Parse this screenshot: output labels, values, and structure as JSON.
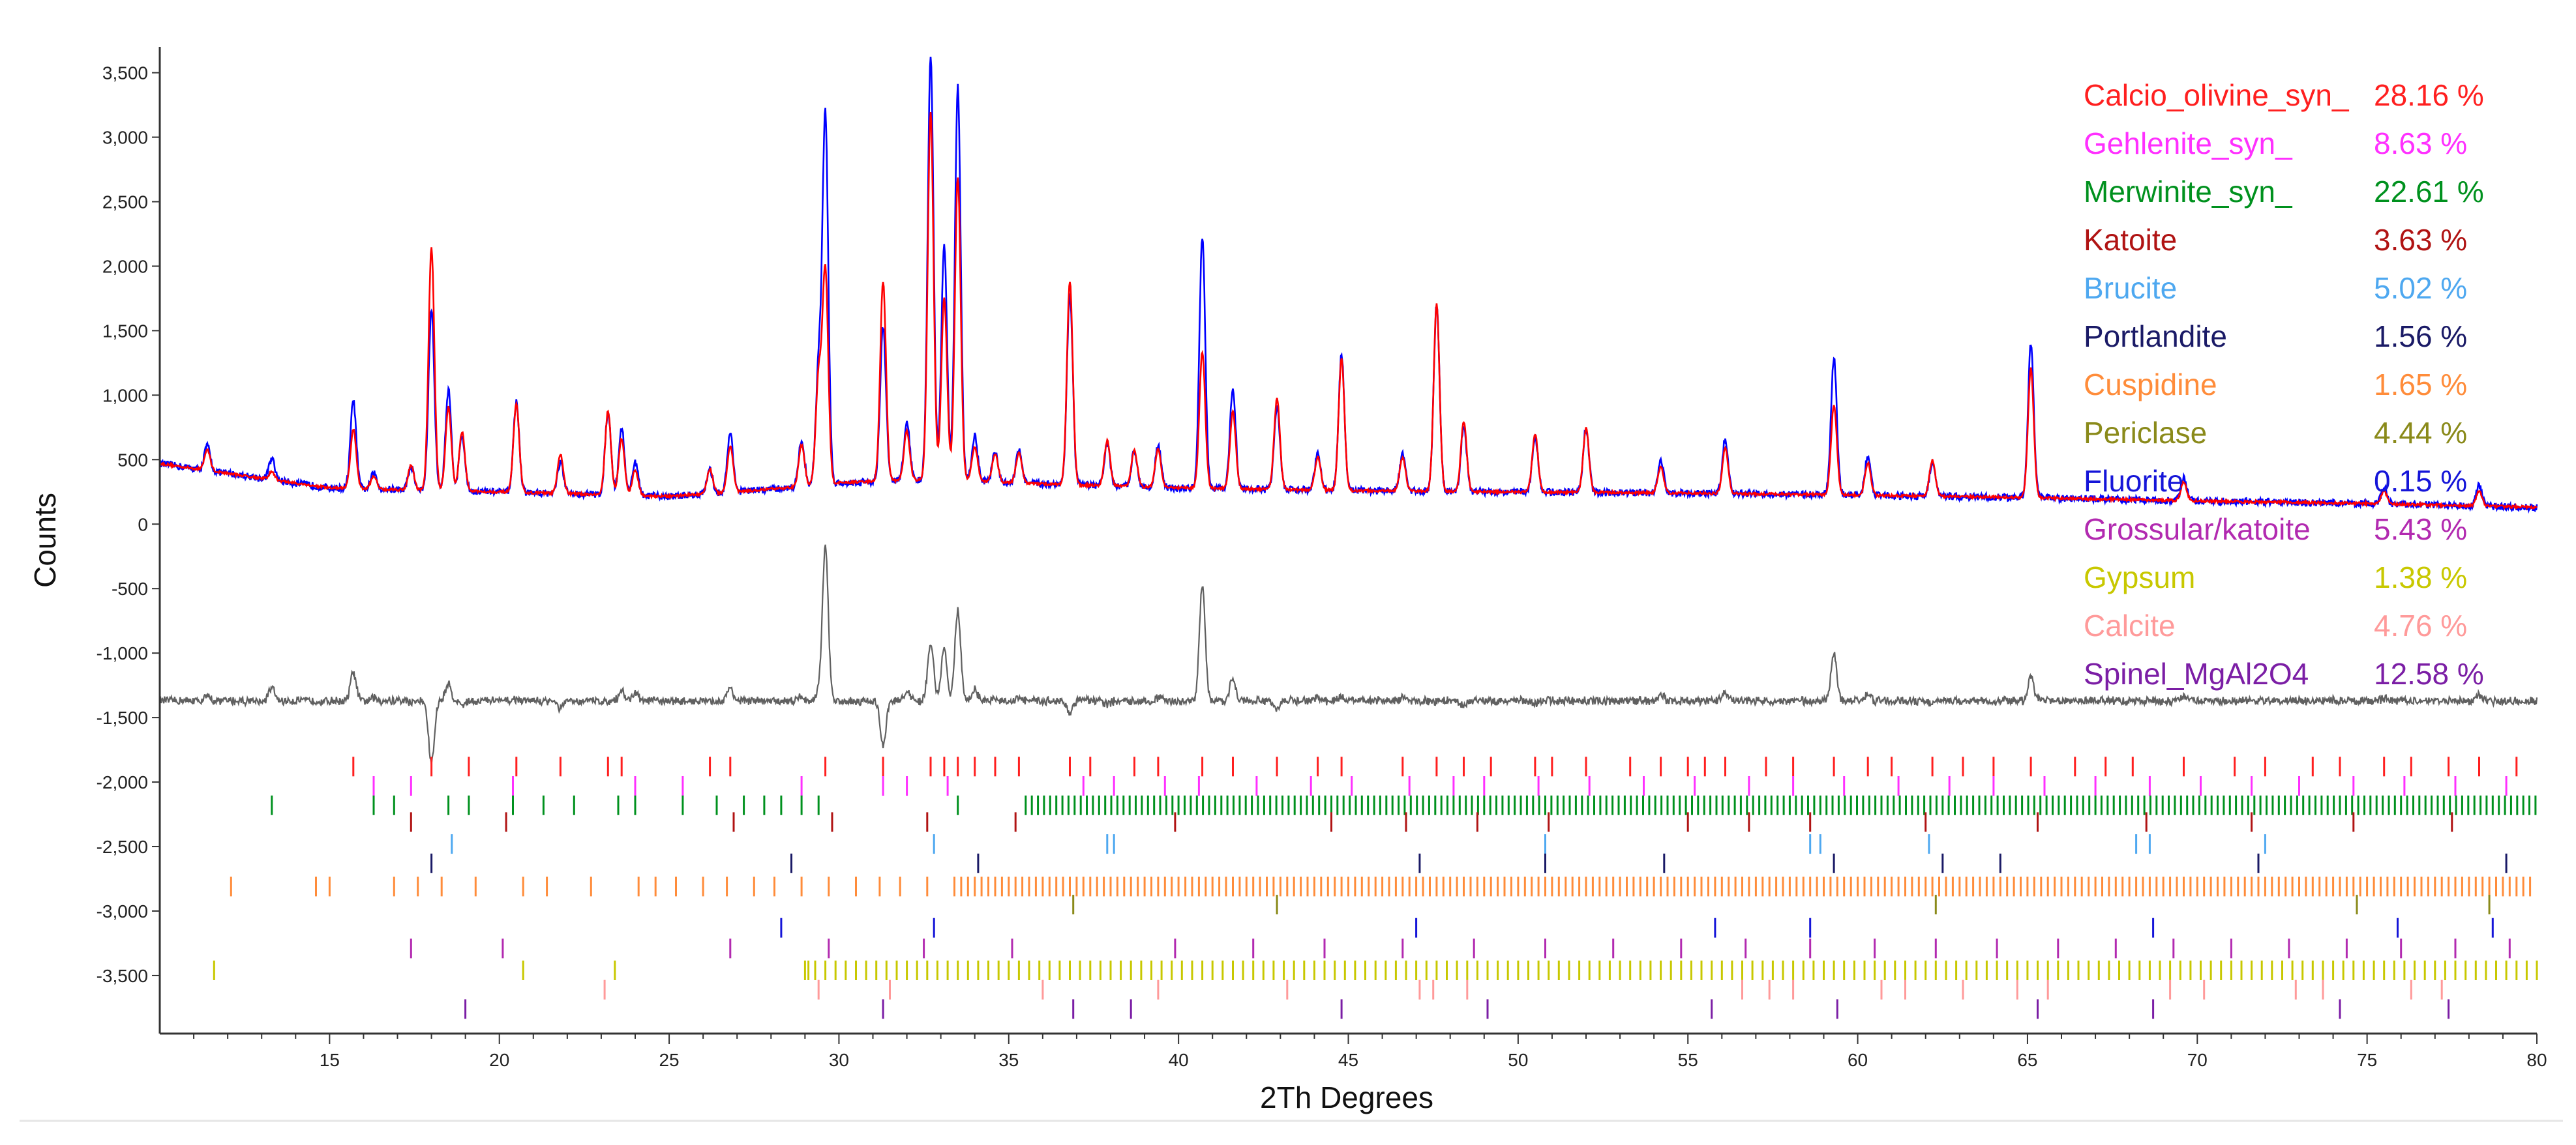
{
  "chart_data": {
    "type": "line",
    "title": "",
    "xlabel": "2Th Degrees",
    "ylabel": "Counts",
    "xlim": [
      10,
      80
    ],
    "ylim": [
      -3950,
      3700
    ],
    "grid": false,
    "legend_position": "top-right",
    "x_ticks": [
      15,
      20,
      25,
      30,
      35,
      40,
      45,
      50,
      55,
      60,
      65,
      70,
      75,
      80
    ],
    "x_tick_labels": [
      "15",
      "20",
      "25",
      "30",
      "35",
      "40",
      "45",
      "50",
      "55",
      "60",
      "65",
      "70",
      "75",
      "80"
    ],
    "y_ticks": [
      3500,
      3000,
      2500,
      2000,
      1500,
      1000,
      500,
      0,
      -500,
      -1000,
      -1500,
      -2000,
      -2500,
      -3000,
      -3500
    ],
    "y_tick_labels": [
      "3,500",
      "3,000",
      "2,500",
      "2,000",
      "1,500",
      "1,000",
      "500",
      "0",
      "-500",
      "-1,000",
      "-1,500",
      "-2,000",
      "-2,500",
      "-3,000",
      "-3,500"
    ],
    "background_curve": [
      [
        10,
        470
      ],
      [
        15,
        280
      ],
      [
        20,
        250
      ],
      [
        25,
        215
      ],
      [
        28,
        270
      ],
      [
        30,
        320
      ],
      [
        33,
        350
      ],
      [
        35,
        320
      ],
      [
        40,
        280
      ],
      [
        45,
        260
      ],
      [
        50,
        250
      ],
      [
        55,
        240
      ],
      [
        60,
        225
      ],
      [
        65,
        205
      ],
      [
        70,
        180
      ],
      [
        75,
        160
      ],
      [
        80,
        130
      ]
    ],
    "peaks": [
      {
        "x": 11.4,
        "obs": 190,
        "calc": 160
      },
      {
        "x": 13.3,
        "obs": 160,
        "calc": 60
      },
      {
        "x": 15.7,
        "obs": 680,
        "calc": 460
      },
      {
        "x": 16.3,
        "obs": 120,
        "calc": 100
      },
      {
        "x": 17.4,
        "obs": 180,
        "calc": 190
      },
      {
        "x": 18.0,
        "obs": 1400,
        "calc": 1880
      },
      {
        "x": 18.5,
        "obs": 780,
        "calc": 650
      },
      {
        "x": 18.9,
        "obs": 430,
        "calc": 460
      },
      {
        "x": 20.5,
        "obs": 700,
        "calc": 680
      },
      {
        "x": 21.8,
        "obs": 240,
        "calc": 300
      },
      {
        "x": 23.2,
        "obs": 650,
        "calc": 650
      },
      {
        "x": 23.6,
        "obs": 520,
        "calc": 440
      },
      {
        "x": 24.0,
        "obs": 260,
        "calc": 200
      },
      {
        "x": 26.2,
        "obs": 180,
        "calc": 190
      },
      {
        "x": 26.8,
        "obs": 460,
        "calc": 360
      },
      {
        "x": 28.9,
        "obs": 360,
        "calc": 320
      },
      {
        "x": 29.4,
        "obs": 880,
        "calc": 820
      },
      {
        "x": 29.6,
        "obs": 2850,
        "calc": 1650
      },
      {
        "x": 31.3,
        "obs": 1200,
        "calc": 1550
      },
      {
        "x": 32.0,
        "obs": 450,
        "calc": 380
      },
      {
        "x": 32.7,
        "obs": 3300,
        "calc": 2850
      },
      {
        "x": 33.1,
        "obs": 1800,
        "calc": 1400
      },
      {
        "x": 33.5,
        "obs": 3050,
        "calc": 2350
      },
      {
        "x": 34.0,
        "obs": 350,
        "calc": 260
      },
      {
        "x": 34.6,
        "obs": 230,
        "calc": 220
      },
      {
        "x": 35.3,
        "obs": 260,
        "calc": 240
      },
      {
        "x": 36.8,
        "obs": 1480,
        "calc": 1580
      },
      {
        "x": 37.9,
        "obs": 320,
        "calc": 350
      },
      {
        "x": 38.7,
        "obs": 280,
        "calc": 280
      },
      {
        "x": 39.4,
        "obs": 320,
        "calc": 300
      },
      {
        "x": 40.7,
        "obs": 1950,
        "calc": 1060
      },
      {
        "x": 41.6,
        "obs": 780,
        "calc": 600
      },
      {
        "x": 42.9,
        "obs": 650,
        "calc": 710
      },
      {
        "x": 44.1,
        "obs": 280,
        "calc": 260
      },
      {
        "x": 44.8,
        "obs": 1050,
        "calc": 1020
      },
      {
        "x": 46.6,
        "obs": 280,
        "calc": 260
      },
      {
        "x": 47.6,
        "obs": 1440,
        "calc": 1450
      },
      {
        "x": 48.4,
        "obs": 500,
        "calc": 540
      },
      {
        "x": 50.5,
        "obs": 430,
        "calc": 450
      },
      {
        "x": 52.0,
        "obs": 500,
        "calc": 500
      },
      {
        "x": 54.2,
        "obs": 250,
        "calc": 200
      },
      {
        "x": 56.1,
        "obs": 420,
        "calc": 350
      },
      {
        "x": 59.3,
        "obs": 1060,
        "calc": 700
      },
      {
        "x": 60.3,
        "obs": 300,
        "calc": 250
      },
      {
        "x": 62.2,
        "obs": 260,
        "calc": 280
      },
      {
        "x": 65.1,
        "obs": 1200,
        "calc": 1000
      },
      {
        "x": 69.6,
        "obs": 170,
        "calc": 140
      },
      {
        "x": 75.5,
        "obs": 120,
        "calc": 100
      },
      {
        "x": 78.3,
        "obs": 160,
        "calc": 120
      }
    ],
    "difference_offset": -1370,
    "series": [
      {
        "name": "",
        "role": "observed",
        "color": "#0000ff"
      },
      {
        "name": "",
        "role": "calculated",
        "color": "#ff0000"
      },
      {
        "name": "",
        "role": "difference",
        "color": "#606060"
      }
    ],
    "phases": [
      {
        "name": "Calcio_olivine_syn_",
        "percent": "28.16 %",
        "color": "#ff1f1f",
        "tick_y": -1880,
        "reflections": [
          15.7,
          18.0,
          19.1,
          20.5,
          21.8,
          23.2,
          23.6,
          26.2,
          26.8,
          29.6,
          31.3,
          32.7,
          33.1,
          33.5,
          34.0,
          34.6,
          35.3,
          36.8,
          37.4,
          38.7,
          39.4,
          40.7,
          41.6,
          42.9,
          44.1,
          44.8,
          46.6,
          47.6,
          48.4,
          49.2,
          50.5,
          51.0,
          52.0,
          53.3,
          54.2,
          55.0,
          55.5,
          56.1,
          57.3,
          58.1,
          59.3,
          60.3,
          61.0,
          62.2,
          63.1,
          64.0,
          65.1,
          66.4,
          67.3,
          68.1,
          69.6,
          71.1,
          72.0,
          73.4,
          74.2,
          75.5,
          76.3,
          77.4,
          78.3,
          79.4
        ]
      },
      {
        "name": "Gehlenite_syn_",
        "percent": "8.63 %",
        "color": "#ff30ff",
        "tick_y": -2030,
        "reflections": [
          16.3,
          17.4,
          20.4,
          24.0,
          25.4,
          28.9,
          31.3,
          32.0,
          33.2,
          37.2,
          38.1,
          39.6,
          40.6,
          42.3,
          43.9,
          45.1,
          46.8,
          48.1,
          49.0,
          50.6,
          52.1,
          53.7,
          55.2,
          56.8,
          58.1,
          59.6,
          61.2,
          62.7,
          64.0,
          65.5,
          67.0,
          68.6,
          70.1,
          71.6,
          73.0,
          74.6,
          76.1,
          77.6,
          79.1
        ]
      },
      {
        "name": "Merwinite_syn_",
        "percent": "22.61 %",
        "color": "#00911e",
        "tick_y": -2180,
        "dense_from": 35.5,
        "dense_to": 80,
        "dense_step": 0.18,
        "reflections": [
          13.3,
          16.3,
          16.9,
          18.5,
          19.1,
          20.4,
          21.3,
          22.2,
          23.5,
          24.0,
          25.4,
          26.4,
          27.2,
          27.8,
          28.3,
          28.9,
          29.4,
          33.5
        ]
      },
      {
        "name": "Katoite",
        "percent": "3.63 %",
        "color": "#b01313",
        "tick_y": -2310,
        "reflections": [
          17.4,
          20.2,
          26.9,
          29.8,
          32.6,
          35.2,
          39.9,
          44.5,
          46.7,
          48.8,
          50.9,
          55.0,
          56.8,
          58.6,
          62.0,
          65.3,
          68.5,
          71.6,
          74.6,
          77.5
        ]
      },
      {
        "name": "Brucite",
        "percent": "5.02 %",
        "color": "#4ea8f0",
        "tick_y": -2480,
        "reflections": [
          18.6,
          32.8,
          37.9,
          38.1,
          50.8,
          58.6,
          58.9,
          62.1,
          68.2,
          68.6,
          72.0
        ]
      },
      {
        "name": "Portlandite",
        "percent": "1.56 %",
        "color": "#1a1a66",
        "tick_y": -2630,
        "reflections": [
          18.0,
          28.6,
          34.1,
          47.1,
          50.8,
          54.3,
          59.3,
          62.5,
          64.2,
          71.8,
          79.1
        ]
      },
      {
        "name": "Cuspidine",
        "percent": "1.65 %",
        "color": "#ff8c3a",
        "tick_y": -2810,
        "dense_from": 33.4,
        "dense_to": 80,
        "dense_step": 0.2,
        "reflections": [
          12.1,
          14.6,
          15.0,
          16.9,
          17.6,
          18.3,
          19.3,
          20.7,
          21.4,
          22.7,
          24.1,
          24.6,
          25.2,
          26.0,
          26.7,
          27.5,
          28.1,
          28.9,
          29.7,
          30.5,
          31.2,
          31.8,
          32.6
        ]
      },
      {
        "name": "Periclase",
        "percent": "4.44 %",
        "color": "#8a8a1a",
        "tick_y": -2950,
        "reflections": [
          36.9,
          42.9,
          62.3,
          74.7,
          78.6
        ]
      },
      {
        "name": "Fluorite",
        "percent": "0.15 %",
        "color": "#1515d8",
        "tick_y": -3130,
        "reflections": [
          28.3,
          32.8,
          47.0,
          55.8,
          58.6,
          68.7,
          75.9,
          78.7
        ]
      },
      {
        "name": "Grossular/katoite",
        "percent": "5.43 %",
        "color": "#b22ab0",
        "tick_y": -3290,
        "reflections": [
          17.4,
          20.1,
          26.8,
          29.7,
          32.5,
          35.1,
          39.9,
          42.2,
          44.3,
          46.6,
          48.7,
          50.8,
          52.8,
          54.8,
          56.7,
          58.6,
          60.5,
          62.3,
          64.1,
          65.9,
          67.6,
          69.3,
          71.0,
          72.7,
          74.4,
          76.0,
          77.6,
          79.2
        ]
      },
      {
        "name": "Gypsum",
        "percent": "1.38 %",
        "color": "#c8c800",
        "tick_y": -3460,
        "dense_from": 29.0,
        "dense_to": 80,
        "dense_step": 0.3,
        "reflections": [
          11.6,
          20.7,
          23.4,
          29.1
        ]
      },
      {
        "name": "Calcite",
        "percent": "4.76 %",
        "color": "#ff9a9a",
        "tick_y": -3610,
        "reflections": [
          23.1,
          29.4,
          31.5,
          36.0,
          39.4,
          43.2,
          47.1,
          47.5,
          48.5,
          56.6,
          57.4,
          58.1,
          60.7,
          61.4,
          63.1,
          64.7,
          65.6,
          69.2,
          70.2,
          72.9,
          73.7,
          76.3,
          77.2
        ]
      },
      {
        "name": "Spinel_MgAl2O4",
        "percent": "12.58 %",
        "color": "#7b1ea5",
        "tick_y": -3760,
        "reflections": [
          19.0,
          31.3,
          36.9,
          38.6,
          44.8,
          49.1,
          55.7,
          59.4,
          65.3,
          68.7,
          74.2,
          77.4
        ]
      }
    ]
  }
}
